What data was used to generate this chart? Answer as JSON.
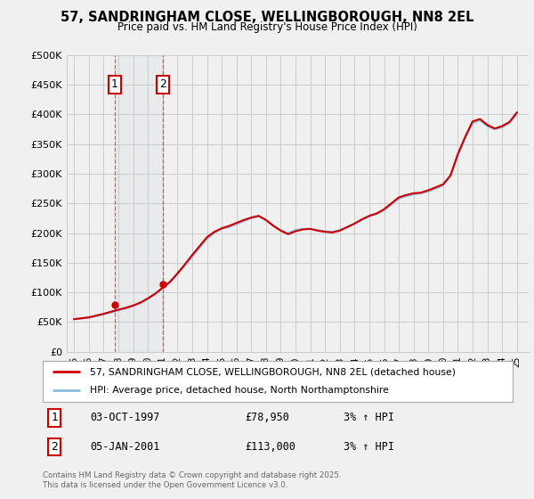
{
  "title": "57, SANDRINGHAM CLOSE, WELLINGBOROUGH, NN8 2EL",
  "subtitle": "Price paid vs. HM Land Registry's House Price Index (HPI)",
  "legend_line1": "57, SANDRINGHAM CLOSE, WELLINGBOROUGH, NN8 2EL (detached house)",
  "legend_line2": "HPI: Average price, detached house, North Northamptonshire",
  "footer": "Contains HM Land Registry data © Crown copyright and database right 2025.\nThis data is licensed under the Open Government Licence v3.0.",
  "sale1_date": "03-OCT-1997",
  "sale1_price": "£78,950",
  "sale1_hpi": "3% ↑ HPI",
  "sale2_date": "05-JAN-2001",
  "sale2_price": "£113,000",
  "sale2_hpi": "3% ↑ HPI",
  "line_color_price": "#cc0000",
  "line_color_hpi": "#88bbdd",
  "background_color": "#f0f0f0",
  "plot_bg_color": "#f0f0f0",
  "grid_color": "#cccccc",
  "sale1_x": 1997.75,
  "sale1_y": 78950,
  "sale2_x": 2001.01,
  "sale2_y": 113000,
  "ylim": [
    0,
    500000
  ],
  "yticks": [
    0,
    50000,
    100000,
    150000,
    200000,
    250000,
    300000,
    350000,
    400000,
    450000,
    500000
  ],
  "xlim_start": 1994.5,
  "xlim_end": 2025.8,
  "years_hpi": [
    1995.0,
    1995.5,
    1996.0,
    1996.5,
    1997.0,
    1997.5,
    1998.0,
    1998.5,
    1999.0,
    1999.5,
    2000.0,
    2000.5,
    2001.0,
    2001.5,
    2002.0,
    2002.5,
    2003.0,
    2003.5,
    2004.0,
    2004.5,
    2005.0,
    2005.5,
    2006.0,
    2006.5,
    2007.0,
    2007.5,
    2008.0,
    2008.5,
    2009.0,
    2009.5,
    2010.0,
    2010.5,
    2011.0,
    2011.5,
    2012.0,
    2012.5,
    2013.0,
    2013.5,
    2014.0,
    2014.5,
    2015.0,
    2015.5,
    2016.0,
    2016.5,
    2017.0,
    2017.5,
    2018.0,
    2018.5,
    2019.0,
    2019.5,
    2020.0,
    2020.5,
    2021.0,
    2021.5,
    2022.0,
    2022.5,
    2023.0,
    2023.5,
    2024.0,
    2024.5,
    2025.0
  ],
  "hpi_values": [
    55000,
    56000,
    57500,
    60000,
    63000,
    66000,
    70000,
    73000,
    77000,
    82000,
    89000,
    97000,
    107000,
    117000,
    130000,
    145000,
    160000,
    175000,
    190000,
    200000,
    207000,
    210000,
    215000,
    220000,
    225000,
    228000,
    222000,
    213000,
    205000,
    200000,
    205000,
    207000,
    207000,
    205000,
    203000,
    202000,
    205000,
    210000,
    215000,
    222000,
    228000,
    232000,
    238000,
    248000,
    258000,
    262000,
    265000,
    267000,
    270000,
    275000,
    280000,
    295000,
    330000,
    360000,
    385000,
    390000,
    380000,
    375000,
    378000,
    385000,
    400000
  ],
  "price_values": [
    55000,
    56500,
    58000,
    61000,
    64000,
    67500,
    71000,
    74000,
    78000,
    83000,
    90000,
    98000,
    108000,
    118000,
    132000,
    147000,
    163000,
    178000,
    193000,
    202000,
    208000,
    212000,
    217000,
    222000,
    226000,
    229000,
    222000,
    212000,
    204000,
    198000,
    203000,
    206000,
    207000,
    204000,
    202000,
    201000,
    204000,
    210000,
    216000,
    223000,
    229000,
    233000,
    240000,
    250000,
    260000,
    264000,
    267000,
    268000,
    272000,
    277000,
    282000,
    297000,
    333000,
    362000,
    388000,
    392000,
    382000,
    376000,
    380000,
    387000,
    403000
  ]
}
